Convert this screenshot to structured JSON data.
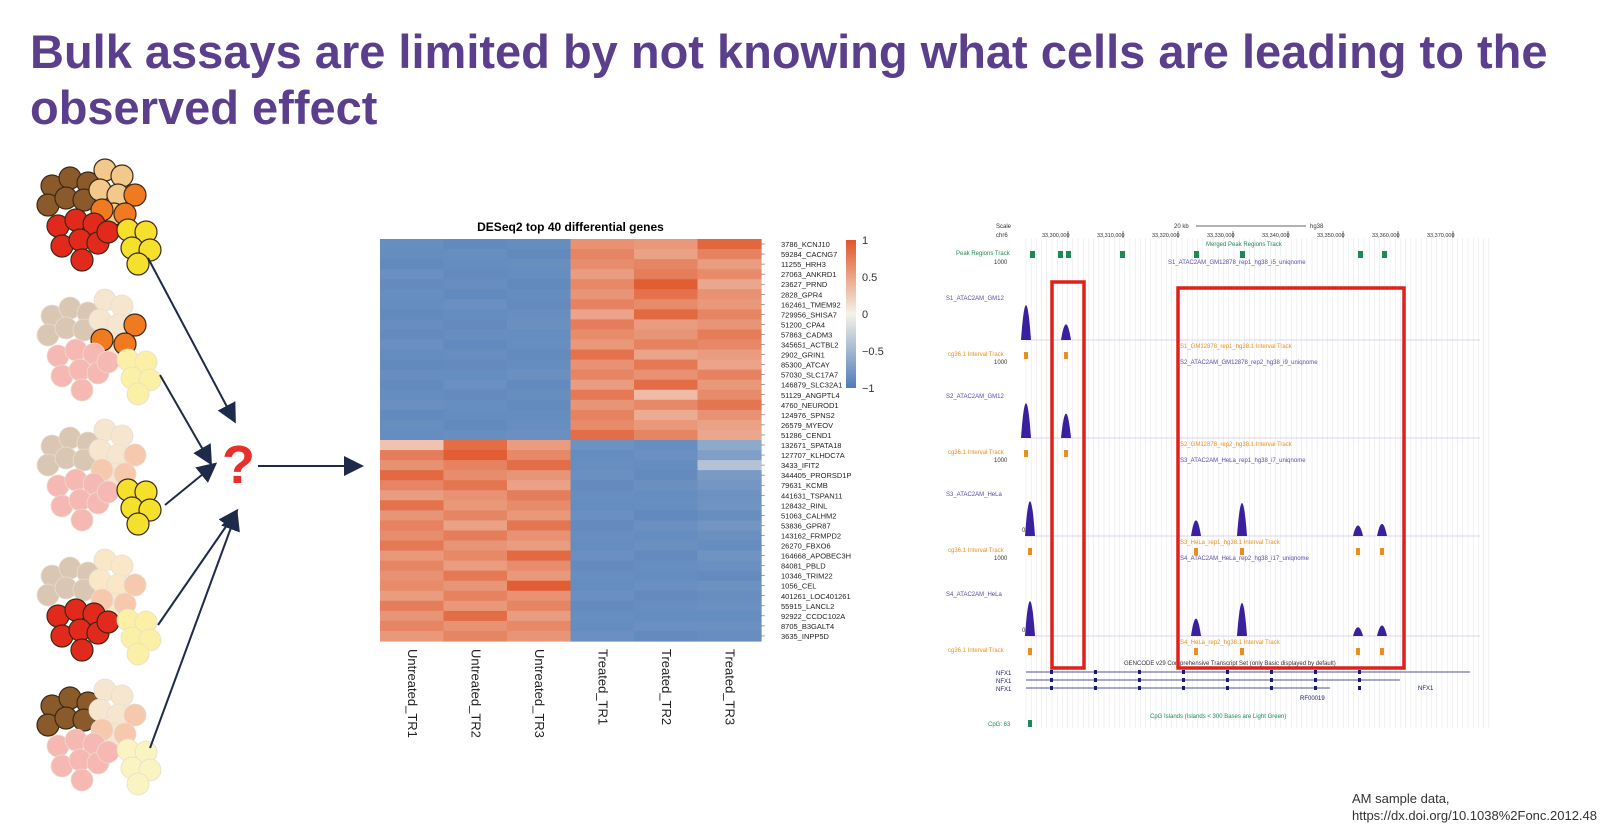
{
  "slide": {
    "title": "Bulk assays are limited by not knowing what cells are leading to the observed effect",
    "title_color": "#5b3f8c",
    "question_mark": "?",
    "question_color": "#e8302a"
  },
  "clusters": [
    {
      "name": "full-cluster",
      "highlight": "all"
    },
    {
      "name": "orange-highlight-cluster",
      "highlight": "orange"
    },
    {
      "name": "yellow-highlight-cluster",
      "highlight": "yellow"
    },
    {
      "name": "red-highlight-cluster",
      "highlight": "red"
    },
    {
      "name": "brown-highlight-cluster",
      "highlight": "brown"
    }
  ],
  "cell_colors": {
    "brown": "#8a5a2b",
    "tan": "#f3c98b",
    "orange": "#f07a20",
    "red": "#e22a1c",
    "yellow": "#f5e12c",
    "pale_yellow": "#fbf0a6"
  },
  "chart_data": {
    "type": "heatmap",
    "title": "DESeq2 top 40 differential genes",
    "samples": [
      "Untreated_TR1",
      "Untreated_TR2",
      "Untreated_TR3",
      "Treated_TR1",
      "Treated_TR2",
      "Treated_TR3"
    ],
    "genes": [
      "3786_KCNJ10",
      "59284_CACNG7",
      "11255_HRH3",
      "27063_ANKRD1",
      "23627_PRND",
      "2828_GPR4",
      "162461_TMEM92",
      "729956_SHISA7",
      "51200_CPA4",
      "57863_CADM3",
      "345651_ACTBL2",
      "2902_GRIN1",
      "85300_ATCAY",
      "57030_SLC17A7",
      "146879_SLC32A1",
      "51129_ANGPTL4",
      "4760_NEUROD1",
      "124976_SPNS2",
      "26579_MYEOV",
      "51286_CEND1",
      "132671_SPATA18",
      "127707_KLHDC7A",
      "3433_IFIT2",
      "344405_PRORSD1P",
      "79631_KCMB",
      "441631_TSPAN11",
      "128432_RINL",
      "51063_CALHM2",
      "53836_GPR87",
      "143162_FRMPD2",
      "26270_FBXO6",
      "164668_APOBEC3H",
      "84081_PBLD",
      "10346_TRIM22",
      "1056_CEL",
      "401261_LOC401261",
      "55915_LANCL2",
      "92922_CCDC102A",
      "8705_B3GALT4",
      "3635_INPP5D"
    ],
    "values": [
      [
        -0.85,
        -0.88,
        -0.86,
        0.62,
        0.58,
        0.9
      ],
      [
        -0.86,
        -0.85,
        -0.88,
        0.7,
        0.52,
        0.72
      ],
      [
        -0.88,
        -0.86,
        -0.85,
        0.65,
        0.7,
        0.55
      ],
      [
        -0.84,
        -0.87,
        -0.86,
        0.55,
        0.75,
        0.66
      ],
      [
        -0.87,
        -0.85,
        -0.88,
        0.68,
        0.95,
        0.48
      ],
      [
        -0.85,
        -0.88,
        -0.86,
        0.6,
        0.82,
        0.62
      ],
      [
        -0.86,
        -0.84,
        -0.87,
        0.72,
        0.66,
        0.58
      ],
      [
        -0.88,
        -0.86,
        -0.85,
        0.5,
        0.88,
        0.7
      ],
      [
        -0.85,
        -0.87,
        -0.83,
        0.75,
        0.55,
        0.6
      ],
      [
        -0.87,
        -0.85,
        -0.86,
        0.66,
        0.6,
        0.75
      ],
      [
        -0.84,
        -0.88,
        -0.85,
        0.58,
        0.72,
        0.68
      ],
      [
        -0.86,
        -0.85,
        -0.87,
        0.82,
        0.5,
        0.55
      ],
      [
        -0.88,
        -0.87,
        -0.86,
        0.62,
        0.78,
        0.5
      ],
      [
        -0.85,
        -0.86,
        -0.84,
        0.7,
        0.62,
        0.72
      ],
      [
        -0.87,
        -0.84,
        -0.88,
        0.55,
        0.85,
        0.58
      ],
      [
        -0.86,
        -0.87,
        -0.85,
        0.78,
        0.35,
        0.66
      ],
      [
        -0.84,
        -0.85,
        -0.87,
        0.6,
        0.68,
        0.8
      ],
      [
        -0.88,
        -0.86,
        -0.86,
        0.72,
        0.45,
        0.62
      ],
      [
        -0.85,
        -0.88,
        -0.85,
        0.66,
        0.58,
        0.52
      ],
      [
        -0.86,
        -0.85,
        -0.84,
        0.85,
        0.7,
        0.48
      ],
      [
        0.3,
        0.85,
        0.55,
        -0.82,
        -0.85,
        -0.62
      ],
      [
        0.75,
        0.95,
        0.68,
        -0.86,
        -0.84,
        -0.7
      ],
      [
        0.62,
        0.72,
        0.85,
        -0.85,
        -0.86,
        -0.4
      ],
      [
        0.88,
        0.65,
        0.6,
        -0.84,
        -0.87,
        -0.75
      ],
      [
        0.7,
        0.8,
        0.52,
        -0.87,
        -0.83,
        -0.78
      ],
      [
        0.55,
        0.62,
        0.75,
        -0.85,
        -0.86,
        -0.82
      ],
      [
        0.82,
        0.58,
        0.66,
        -0.86,
        -0.85,
        -0.8
      ],
      [
        0.6,
        0.7,
        0.58,
        -0.84,
        -0.88,
        -0.85
      ],
      [
        0.72,
        0.52,
        0.8,
        -0.87,
        -0.84,
        -0.79
      ],
      [
        0.65,
        0.75,
        0.62,
        -0.85,
        -0.86,
        -0.83
      ],
      [
        0.78,
        0.6,
        0.55,
        -0.86,
        -0.83,
        -0.86
      ],
      [
        0.58,
        0.68,
        0.88,
        -0.84,
        -0.87,
        -0.8
      ],
      [
        0.7,
        0.55,
        0.65,
        -0.87,
        -0.85,
        -0.84
      ],
      [
        0.62,
        0.78,
        0.58,
        -0.85,
        -0.86,
        -0.87
      ],
      [
        0.66,
        0.6,
        0.95,
        -0.86,
        -0.84,
        -0.82
      ],
      [
        0.55,
        0.72,
        0.62,
        -0.84,
        -0.87,
        -0.85
      ],
      [
        0.75,
        0.58,
        0.7,
        -0.87,
        -0.85,
        -0.83
      ],
      [
        0.6,
        0.85,
        0.55,
        -0.85,
        -0.86,
        -0.86
      ],
      [
        0.7,
        0.62,
        0.68,
        -0.86,
        -0.84,
        -0.84
      ],
      [
        0.58,
        0.7,
        0.6,
        -0.84,
        -0.87,
        -0.85
      ]
    ],
    "colorbar": {
      "ticks": [
        1,
        0.5,
        0,
        -0.5,
        -1
      ],
      "range": [
        -1,
        1
      ],
      "low_color": "#4f7cb8",
      "mid_color": "#f5f2e8",
      "high_color": "#e0562b"
    }
  },
  "genome_browser": {
    "scale_label": "Scale",
    "chrom_label": "chr6",
    "scale_bar": "20 kb",
    "assembly": "hg38",
    "positions": [
      "33,300,000",
      "33,310,000",
      "33,320,000",
      "33,330,000",
      "33,340,000",
      "33,350,000",
      "33,360,000",
      "33,370,000"
    ],
    "merged_track": "Merged Peak Regions Track",
    "top_track_label": "Peak Regions Track",
    "top_track_max": "1000",
    "tracks": [
      {
        "label": "S1_ATAC2AM_GM12",
        "title": "S1_ATAC2AM_GM12878_rep1_hg38_i5_uniqnome",
        "interval_label": "cg36.1 Interval Track",
        "interval_title": "S1_GM12878_rep1_hg38.1 Interval Track",
        "max": "1000",
        "next_title": "S2_ATAC2AM_GM12878_rep2_hg38_i9_uniqnome"
      },
      {
        "label": "S2_ATAC2AM_GM12",
        "title": "",
        "interval_label": "cg36.1 Interval Track",
        "interval_title": "S2_GM12878_rep2_hg38.1 Interval Track",
        "max": "1000",
        "next_title": "S3_ATAC2AM_HeLa_rep1_hg38_i7_uniqnome"
      },
      {
        "label": "S3_ATAC2AM_HeLa",
        "title": "",
        "interval_label": "cg36.1 Interval Track",
        "interval_title": "S3_HeLa_rep1_hg38.1 Interval Track",
        "max": "1000",
        "next_title": "S4_ATAC2AM_HeLa_rep2_hg38_i17_uniqnome"
      },
      {
        "label": "S4_ATAC2AM_HeLa",
        "title": "",
        "interval_label": "cg36.1 Interval Track",
        "interval_title": "S4_HeLa_rep2_hg38.1 Interval Track",
        "max": "",
        "next_title": ""
      }
    ],
    "gencode_label": "GENCODE v29 Comprehensive Transcript Set (only Basic displayed by default)",
    "genes": [
      "NFX1",
      "NFX1",
      "NFX1"
    ],
    "gene_right_labels": [
      "NFX1",
      "RF00019"
    ],
    "cpg_label": "CpG: 63",
    "cpg_title": "CpG Islands (Islands < 300 Bases are Light Green)",
    "highlight_color": "#e0201a"
  },
  "citation": {
    "line1": "AM sample data,",
    "line2": "https://dx.doi.org/10.1038%2Fonc.2012.48"
  }
}
